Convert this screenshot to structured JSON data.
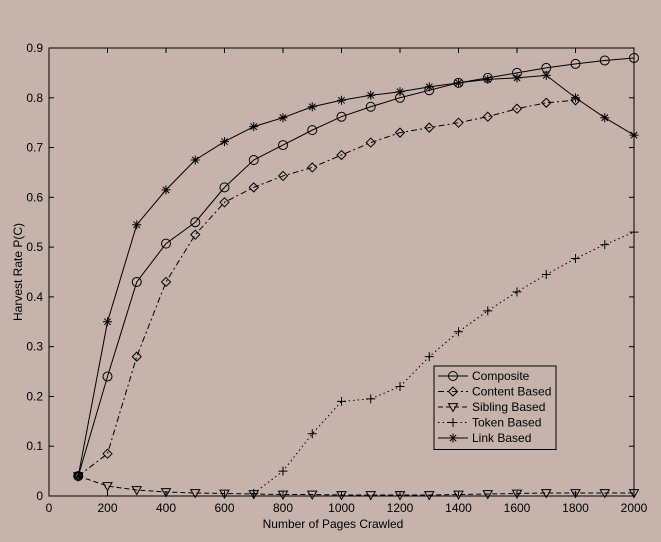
{
  "chart_data": {
    "type": "line",
    "title": "",
    "xlabel": "Number of Pages Crawled",
    "ylabel": "Harvest Rate P(C)",
    "xlim": [
      0,
      2000
    ],
    "ylim": [
      0,
      0.9
    ],
    "xticks": [
      0,
      200,
      400,
      600,
      800,
      1000,
      1200,
      1400,
      1600,
      1800,
      2000
    ],
    "yticks": [
      0,
      0.1,
      0.2,
      0.3,
      0.4,
      0.5,
      0.6,
      0.7,
      0.8,
      0.9
    ],
    "grid": false,
    "legend_position": "lower-right",
    "series": [
      {
        "name": "Composite",
        "marker": "circle",
        "line_style": "solid",
        "color": "#000000",
        "x": [
          100,
          200,
          300,
          400,
          500,
          600,
          700,
          800,
          900,
          1000,
          1100,
          1200,
          1300,
          1400,
          1500,
          1600,
          1700,
          1800,
          1900,
          2000
        ],
        "y": [
          0.04,
          0.24,
          0.43,
          0.507,
          0.55,
          0.62,
          0.675,
          0.705,
          0.735,
          0.762,
          0.782,
          0.8,
          0.815,
          0.83,
          0.84,
          0.85,
          0.86,
          0.868,
          0.875,
          0.88
        ]
      },
      {
        "name": "Content Based",
        "marker": "diamond",
        "line_style": "dashdot",
        "color": "#000000",
        "x": [
          100,
          200,
          300,
          400,
          500,
          600,
          700,
          800,
          900,
          1000,
          1100,
          1200,
          1300,
          1400,
          1500,
          1600,
          1700,
          1800
        ],
        "y": [
          0.04,
          0.085,
          0.28,
          0.43,
          0.525,
          0.59,
          0.62,
          0.643,
          0.66,
          0.685,
          0.71,
          0.73,
          0.74,
          0.75,
          0.762,
          0.778,
          0.79,
          0.795
        ]
      },
      {
        "name": "Sibling Based",
        "marker": "triangle-down",
        "line_style": "dashed",
        "color": "#000000",
        "x": [
          100,
          200,
          300,
          400,
          500,
          600,
          700,
          800,
          900,
          1000,
          1100,
          1200,
          1300,
          1400,
          1500,
          1600,
          1700,
          1800,
          1900,
          2000
        ],
        "y": [
          0.04,
          0.02,
          0.012,
          0.008,
          0.006,
          0.005,
          0.004,
          0.003,
          0.003,
          0.002,
          0.002,
          0.002,
          0.002,
          0.003,
          0.004,
          0.005,
          0.006,
          0.006,
          0.006,
          0.006
        ]
      },
      {
        "name": "Token Based",
        "marker": "plus",
        "line_style": "dotted",
        "color": "#000000",
        "x": [
          700,
          800,
          900,
          1000,
          1100,
          1200,
          1300,
          1400,
          1500,
          1600,
          1700,
          1800,
          1900,
          2000
        ],
        "y": [
          0.005,
          0.05,
          0.125,
          0.19,
          0.195,
          0.22,
          0.28,
          0.33,
          0.372,
          0.41,
          0.445,
          0.477,
          0.505,
          0.53
        ]
      },
      {
        "name": "Link Based",
        "marker": "star",
        "line_style": "solid",
        "color": "#000000",
        "x": [
          100,
          200,
          300,
          400,
          500,
          600,
          700,
          800,
          900,
          1000,
          1100,
          1200,
          1300,
          1400,
          1500,
          1600,
          1700,
          1800,
          1900,
          2000
        ],
        "y": [
          0.04,
          0.35,
          0.545,
          0.615,
          0.675,
          0.712,
          0.742,
          0.76,
          0.782,
          0.795,
          0.805,
          0.812,
          0.822,
          0.83,
          0.837,
          0.84,
          0.845,
          0.8,
          0.76,
          0.725
        ]
      }
    ]
  }
}
